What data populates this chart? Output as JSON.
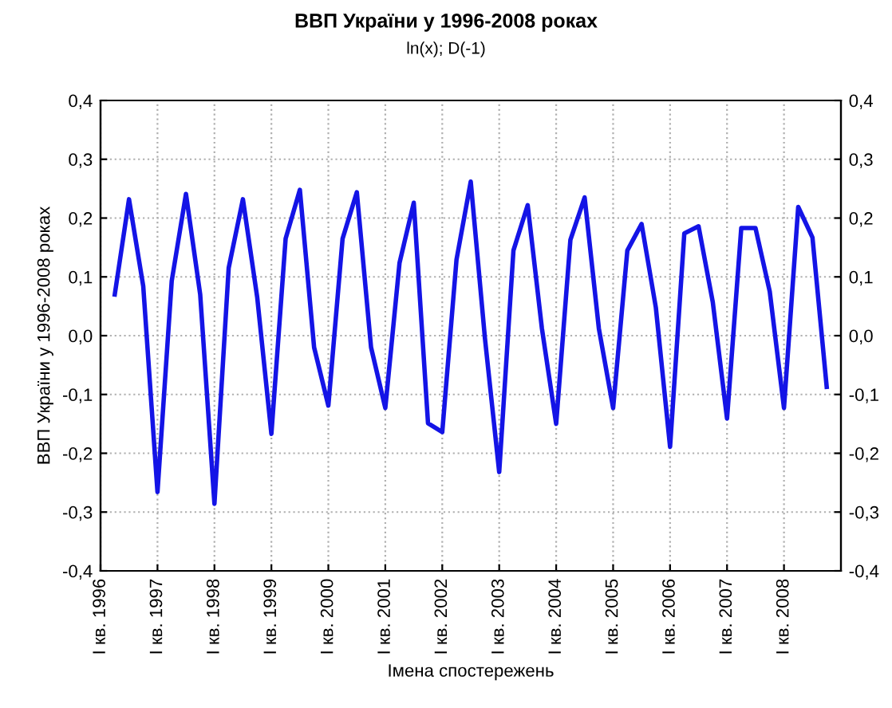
{
  "chart_data": {
    "type": "line",
    "title": "ВВП України у 1996-2008 роках",
    "subtitle": "ln(x); D(-1)",
    "xlabel": "Імена спостережень",
    "ylabel": "ВВП України у 1996-2008 роках",
    "categories": [
      "I кв. 1996",
      null,
      null,
      null,
      "I кв. 1997",
      null,
      null,
      null,
      "I кв. 1998",
      null,
      null,
      null,
      "I кв. 1999",
      null,
      null,
      null,
      "I кв. 2000",
      null,
      null,
      null,
      "I кв. 2001",
      null,
      null,
      null,
      "I кв. 2002",
      null,
      null,
      null,
      "I кв. 2003",
      null,
      null,
      null,
      "I кв. 2004",
      null,
      null,
      null,
      "I кв. 2005",
      null,
      null,
      null,
      "I кв. 2006",
      null,
      null,
      null,
      "I кв. 2007",
      null,
      null,
      null,
      "I кв. 2008",
      null,
      null,
      null
    ],
    "series": [
      {
        "color": "#1414e6",
        "values": [
          null,
          0.07,
          0.232,
          0.084,
          -0.266,
          0.093,
          0.241,
          0.07,
          -0.286,
          0.115,
          0.232,
          0.066,
          -0.167,
          0.165,
          0.248,
          -0.02,
          -0.119,
          0.165,
          0.244,
          -0.02,
          -0.123,
          0.124,
          0.226,
          -0.149,
          -0.164,
          0.129,
          0.262,
          -0.005,
          -0.232,
          0.145,
          0.222,
          0.012,
          -0.15,
          0.163,
          0.235,
          0.012,
          -0.123,
          0.145,
          0.19,
          0.048,
          -0.189,
          0.174,
          0.186,
          0.057,
          -0.141,
          0.183,
          0.183,
          0.075,
          -0.123,
          0.219,
          0.167,
          -0.087
        ]
      }
    ],
    "ylim": [
      -0.4,
      0.4
    ],
    "yticks": [
      {
        "value": -0.4,
        "label": "-0,4"
      },
      {
        "value": -0.3,
        "label": "-0,3"
      },
      {
        "value": -0.2,
        "label": "-0,2"
      },
      {
        "value": -0.1,
        "label": "-0,1"
      },
      {
        "value": 0.0,
        "label": "0,0"
      },
      {
        "value": 0.1,
        "label": "0,1"
      },
      {
        "value": 0.2,
        "label": "0,2"
      },
      {
        "value": 0.3,
        "label": "0,3"
      },
      {
        "value": 0.4,
        "label": "0,4"
      }
    ],
    "y2lim": [
      -0.4,
      0.4
    ],
    "y2ticks": [
      {
        "value": -0.4,
        "label": "-0,4"
      },
      {
        "value": -0.3,
        "label": "-0,3"
      },
      {
        "value": -0.2,
        "label": "-0,2"
      },
      {
        "value": -0.1,
        "label": "-0,1"
      },
      {
        "value": 0.0,
        "label": "0,0"
      },
      {
        "value": 0.1,
        "label": "0,1"
      },
      {
        "value": 0.2,
        "label": "0,2"
      },
      {
        "value": 0.3,
        "label": "0,3"
      },
      {
        "value": 0.4,
        "label": "0,4"
      }
    ],
    "grid": true,
    "line_style": "solid"
  }
}
